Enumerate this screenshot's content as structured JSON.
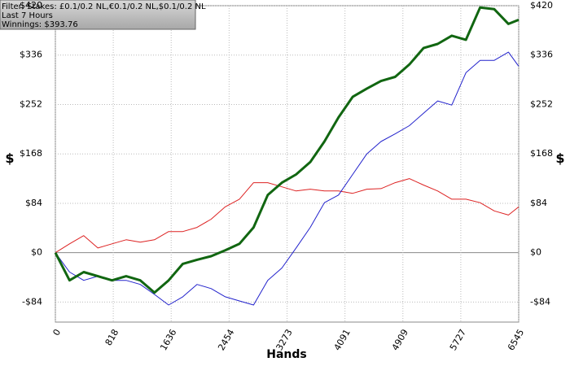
{
  "chart_data": {
    "type": "line",
    "info_box": [
      "Filter: Stakes: £0.1/0.2 NL,€0.1/0.2 NL,$0.1/0.2 NL",
      "Last  7 Hours",
      "Winnings: $393.76"
    ],
    "x_label": "Hands",
    "y_label": "$",
    "y2_label": "$",
    "xlim": [
      0,
      6545
    ],
    "xticks": [
      0,
      818,
      1636,
      2454,
      3273,
      4091,
      4909,
      5727,
      6545
    ],
    "ylim": [
      -118,
      420
    ],
    "yticks": [
      {
        "value": -84,
        "label": "-$84"
      },
      {
        "value": 0,
        "label": "$0"
      },
      {
        "value": 84,
        "label": "$84"
      },
      {
        "value": 168,
        "label": "$168"
      },
      {
        "value": 252,
        "label": "$252"
      },
      {
        "value": 336,
        "label": "$336"
      },
      {
        "value": 420,
        "label": "$420"
      }
    ],
    "grid": true,
    "x": [
      0,
      200,
      400,
      600,
      800,
      1000,
      1200,
      1400,
      1600,
      1800,
      2000,
      2200,
      2400,
      2600,
      2800,
      3000,
      3200,
      3400,
      3600,
      3800,
      4000,
      4200,
      4400,
      4600,
      4800,
      5000,
      5200,
      5400,
      5600,
      5800,
      6000,
      6200,
      6400,
      6545
    ],
    "series": [
      {
        "color": "#dd2222",
        "width": 1,
        "values": [
          0,
          15,
          29,
          8,
          15,
          22,
          18,
          22,
          36,
          36,
          43,
          57,
          78,
          91,
          119,
          119,
          112,
          105,
          108,
          105,
          105,
          101,
          108,
          109,
          119,
          126,
          115,
          105,
          91,
          91,
          85,
          71,
          64,
          78
        ]
      },
      {
        "color": "#2222cc",
        "width": 1,
        "values": [
          0,
          -33,
          -47,
          -40,
          -47,
          -47,
          -54,
          -71,
          -89,
          -75,
          -54,
          -61,
          -75,
          -82,
          -89,
          -47,
          -26,
          8,
          43,
          85,
          98,
          133,
          168,
          189,
          202,
          216,
          237,
          258,
          251,
          306,
          327,
          327,
          341,
          317
        ]
      },
      {
        "color": "#116611",
        "width": 3,
        "values": [
          0,
          -47,
          -33,
          -40,
          -47,
          -40,
          -47,
          -68,
          -47,
          -19,
          -12,
          -6,
          4,
          15,
          43,
          98,
          119,
          133,
          154,
          189,
          230,
          265,
          279,
          292,
          299,
          320,
          348,
          355,
          369,
          362,
          417,
          414,
          389,
          396
        ]
      }
    ]
  }
}
